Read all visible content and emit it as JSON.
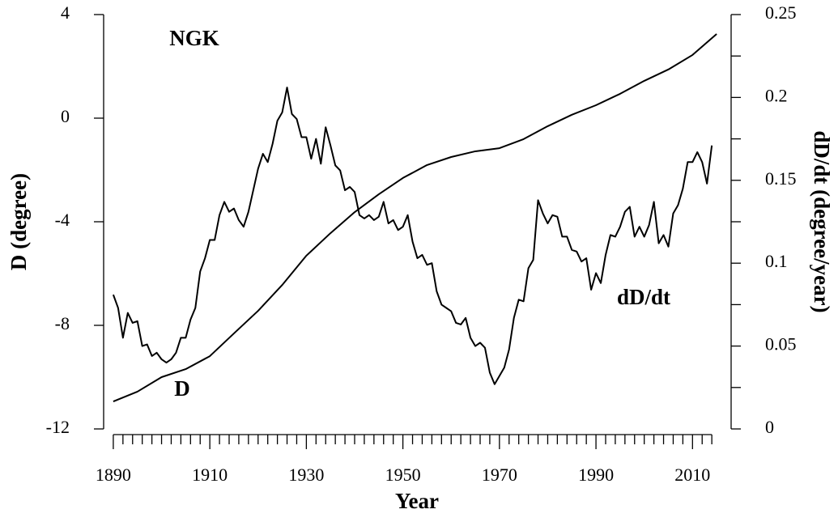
{
  "chart_data": {
    "type": "line",
    "title": "NGK",
    "xlabel": "Year",
    "ylabel": "D (degree)",
    "y2label": "dD/dt (degree/year)",
    "annotations": [
      "D",
      "dD/dt"
    ],
    "xlim": [
      1888,
      2018
    ],
    "xticks": [
      1890,
      1910,
      1930,
      1950,
      1970,
      1990,
      2010
    ],
    "xminorticks": [
      1892,
      1894,
      1896,
      1898,
      1900,
      1902,
      1904,
      1906,
      1908,
      1912,
      1914,
      1916,
      1918,
      1920,
      1922,
      1924,
      1926,
      1928,
      1932,
      1934,
      1936,
      1938,
      1940,
      1942,
      1944,
      1946,
      1948,
      1952,
      1954,
      1956,
      1958,
      1960,
      1962,
      1964,
      1966,
      1968,
      1972,
      1974,
      1976,
      1978,
      1980,
      1982,
      1984,
      1986,
      1988,
      1992,
      1994,
      1996,
      1998,
      2000,
      2002,
      2004,
      2006,
      2008,
      2012,
      2014
    ],
    "ylim": [
      -12,
      4
    ],
    "yticks": [
      -12,
      -8,
      -4,
      0,
      4
    ],
    "y2lim": [
      0,
      0.25
    ],
    "y2ticks": [
      0,
      0.05,
      0.1,
      0.15,
      0.2,
      0.25
    ],
    "y2minorticks": [
      0.025,
      0.075,
      0.125,
      0.175,
      0.225
    ],
    "series": [
      {
        "name": "D",
        "color": "#000000",
        "x": [
          1890,
          1895,
          1900,
          1905,
          1910,
          1915,
          1920,
          1925,
          1930,
          1935,
          1940,
          1945,
          1950,
          1955,
          1960,
          1965,
          1970,
          1975,
          1980,
          1985,
          1990,
          1995,
          2000,
          2005,
          2010,
          2015
        ],
        "values": [
          -10.94,
          -10.56,
          -10.0,
          -9.69,
          -9.19,
          -8.31,
          -7.44,
          -6.44,
          -5.31,
          -4.44,
          -3.63,
          -2.94,
          -2.31,
          -1.81,
          -1.5,
          -1.28,
          -1.16,
          -0.81,
          -0.31,
          0.13,
          0.5,
          0.94,
          1.44,
          1.88,
          2.44,
          3.25
        ]
      },
      {
        "name": "dD/dt",
        "color": "#000000",
        "axis": "y2",
        "x": [
          1890,
          1891,
          1892,
          1893,
          1894,
          1895,
          1896,
          1897,
          1898,
          1899,
          1900,
          1901,
          1902,
          1903,
          1904,
          1905,
          1906,
          1907,
          1908,
          1909,
          1910,
          1911,
          1912,
          1913,
          1914,
          1915,
          1916,
          1917,
          1918,
          1919,
          1920,
          1921,
          1922,
          1923,
          1924,
          1925,
          1926,
          1927,
          1928,
          1929,
          1930,
          1931,
          1932,
          1933,
          1934,
          1935,
          1936,
          1937,
          1938,
          1939,
          1940,
          1941,
          1942,
          1943,
          1944,
          1945,
          1946,
          1947,
          1948,
          1949,
          1950,
          1951,
          1952,
          1953,
          1954,
          1955,
          1956,
          1957,
          1958,
          1959,
          1960,
          1961,
          1962,
          1963,
          1964,
          1965,
          1966,
          1967,
          1968,
          1969,
          1970,
          1971,
          1972,
          1973,
          1974,
          1975,
          1976,
          1977,
          1978,
          1979,
          1980,
          1981,
          1982,
          1983,
          1984,
          1985,
          1986,
          1987,
          1988,
          1989,
          1990,
          1991,
          1992,
          1993,
          1994,
          1995,
          1996,
          1997,
          1998,
          1999,
          2000,
          2001,
          2002,
          2003,
          2004,
          2005,
          2006,
          2007,
          2008,
          2009,
          2010,
          2011,
          2012,
          2013,
          2014
        ],
        "values": [
          0.081,
          0.073,
          0.055,
          0.07,
          0.064,
          0.065,
          0.05,
          0.051,
          0.044,
          0.046,
          0.042,
          0.04,
          0.042,
          0.046,
          0.055,
          0.055,
          0.066,
          0.073,
          0.095,
          0.103,
          0.114,
          0.114,
          0.129,
          0.137,
          0.131,
          0.133,
          0.126,
          0.122,
          0.131,
          0.144,
          0.157,
          0.166,
          0.161,
          0.172,
          0.186,
          0.191,
          0.206,
          0.19,
          0.187,
          0.176,
          0.176,
          0.163,
          0.175,
          0.16,
          0.182,
          0.171,
          0.159,
          0.156,
          0.144,
          0.146,
          0.143,
          0.129,
          0.127,
          0.129,
          0.126,
          0.128,
          0.137,
          0.124,
          0.126,
          0.12,
          0.122,
          0.129,
          0.113,
          0.103,
          0.105,
          0.099,
          0.1,
          0.083,
          0.075,
          0.073,
          0.071,
          0.064,
          0.063,
          0.067,
          0.055,
          0.05,
          0.052,
          0.049,
          0.034,
          0.027,
          0.032,
          0.037,
          0.048,
          0.067,
          0.078,
          0.077,
          0.097,
          0.102,
          0.138,
          0.13,
          0.124,
          0.129,
          0.128,
          0.116,
          0.116,
          0.108,
          0.107,
          0.101,
          0.103,
          0.084,
          0.094,
          0.088,
          0.105,
          0.117,
          0.116,
          0.122,
          0.131,
          0.134,
          0.116,
          0.122,
          0.116,
          0.123,
          0.137,
          0.112,
          0.117,
          0.11,
          0.13,
          0.135,
          0.145,
          0.161,
          0.161,
          0.167,
          0.161,
          0.148,
          0.171
        ]
      }
    ]
  }
}
